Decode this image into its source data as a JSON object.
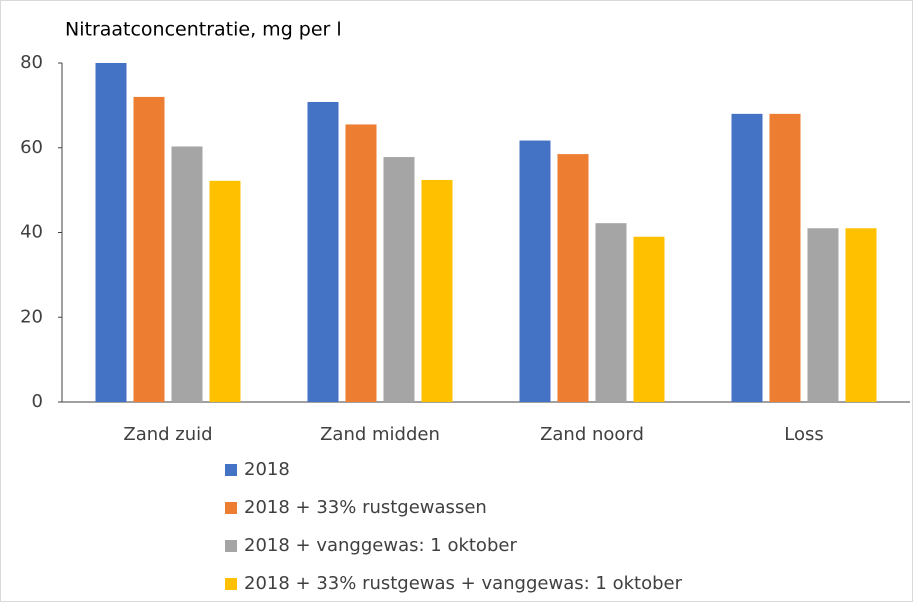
{
  "chart_data": {
    "type": "bar",
    "title": "Nitraatconcentratie, mg per l",
    "categories": [
      "Zand zuid",
      "Zand midden",
      "Zand noord",
      "Loss"
    ],
    "series": [
      {
        "name": "2018",
        "color": "#4472c4",
        "values": [
          80,
          70.8,
          61.7,
          68
        ]
      },
      {
        "name": "2018 + 33% rustgewassen",
        "color": "#ed7d31",
        "values": [
          72,
          65.5,
          58.5,
          68
        ]
      },
      {
        "name": "2018 + vanggewas: 1 oktober",
        "color": "#a5a5a5",
        "values": [
          60.3,
          57.8,
          42.2,
          41
        ]
      },
      {
        "name": "2018 + 33% rustgewas + vanggewas: 1 oktober",
        "color": "#ffc000",
        "values": [
          52.2,
          52.4,
          39,
          41
        ]
      }
    ],
    "ylim": [
      0,
      80
    ],
    "yticks": [
      0,
      20,
      40,
      60,
      80
    ],
    "grid": false,
    "legend": "bottom"
  }
}
